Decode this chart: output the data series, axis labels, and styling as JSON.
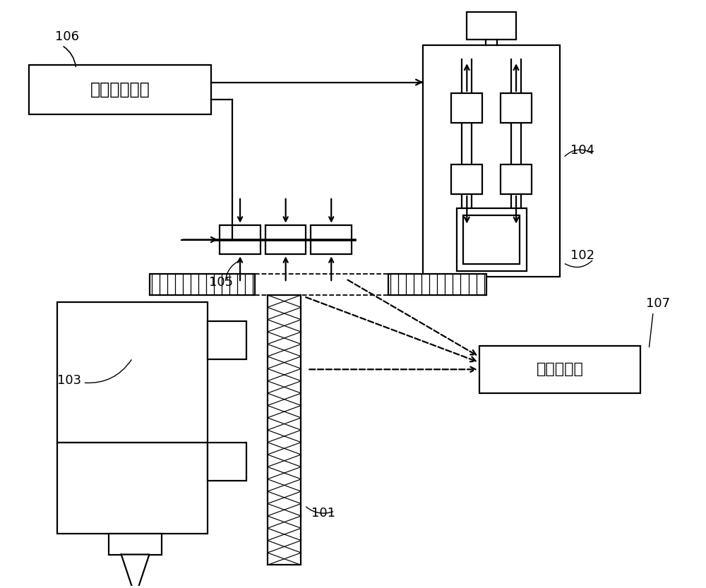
{
  "bg_color": "#ffffff",
  "lc": "#000000",
  "lw": 1.6,
  "label_106": "106",
  "label_104": "104",
  "label_102": "102",
  "label_105": "105",
  "label_103": "103",
  "label_101": "101",
  "label_107": "107",
  "text_controller": "制动器控制器",
  "text_detector": "缺陷检测器",
  "font_label": 13,
  "font_chinese": 17
}
